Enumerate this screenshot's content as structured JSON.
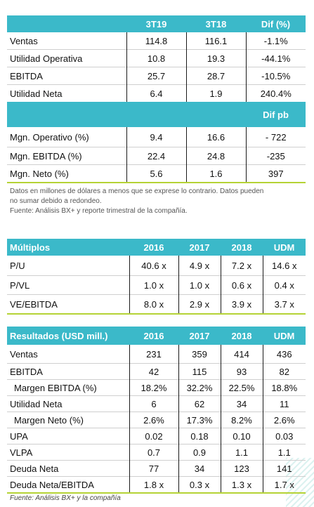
{
  "t1": {
    "headers": [
      "",
      "3T19",
      "3T18",
      "Dif (%)"
    ],
    "rows": [
      [
        "Ventas",
        "114.8",
        "116.1",
        "-1.1%"
      ],
      [
        "Utilidad Operativa",
        "10.8",
        "19.3",
        "-44.1%"
      ],
      [
        "EBITDA",
        "25.7",
        "28.7",
        "-10.5%"
      ],
      [
        "Utilidad Neta",
        "6.4",
        "1.9",
        "240.4%"
      ]
    ],
    "subheader": "Dif pb",
    "rows2": [
      [
        "Mgn. Operativo (%)",
        "9.4",
        "16.6",
        "- 722"
      ],
      [
        "Mgn. EBITDA (%)",
        "22.4",
        "24.8",
        "-235"
      ],
      [
        "Mgn. Neto (%)",
        "5.6",
        "1.6",
        "397"
      ]
    ]
  },
  "note": {
    "line1": "Datos en millones de dólares a menos que se exprese lo contrario. Datos pueden",
    "line2": "no sumar debido a redondeo.",
    "line3": "Fuente: Análisis BX+ y reporte trimestral de la compañía."
  },
  "t2": {
    "headers": [
      "Múltiplos",
      "2016",
      "2017",
      "2018",
      "UDM"
    ],
    "rows": [
      [
        "P/U",
        "40.6 x",
        "4.9 x",
        "7.2 x",
        "14.6 x"
      ],
      [
        "P/VL",
        "1.0 x",
        "1.0 x",
        "0.6 x",
        "0.4 x"
      ],
      [
        "VE/EBITDA",
        "8.0 x",
        "2.9 x",
        "3.9 x",
        "3.7 x"
      ]
    ]
  },
  "t3": {
    "headers": [
      "Resultados (USD mill.)",
      "2016",
      "2017",
      "2018",
      "UDM"
    ],
    "rows": [
      [
        "Ventas",
        "231",
        "359",
        "414",
        "436"
      ],
      [
        "EBITDA",
        "42",
        "115",
        "93",
        "82"
      ],
      [
        "Margen EBITDA (%)",
        "18.2%",
        "32.2%",
        "22.5%",
        "18.8%"
      ],
      [
        "Utilidad Neta",
        "6",
        "62",
        "34",
        "11"
      ],
      [
        "Margen Neto (%)",
        "2.6%",
        "17.3%",
        "8.2%",
        "2.6%"
      ],
      [
        "UPA",
        "0.02",
        "0.18",
        "0.10",
        "0.03"
      ],
      [
        "VLPA",
        "0.7",
        "0.9",
        "1.1",
        "1.1"
      ],
      [
        "Deuda Neta",
        "77",
        "34",
        "123",
        "141"
      ],
      [
        "Deuda Neta/EBITDA",
        "1.8 x",
        "0.3 x",
        "1.3 x",
        "1.7 x"
      ]
    ]
  },
  "source": "Fuente: Análisis BX+ y la compañía"
}
